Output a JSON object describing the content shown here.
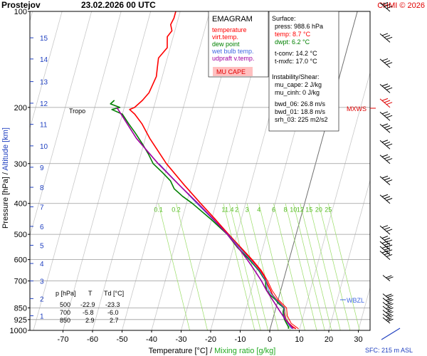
{
  "header": {
    "station": "Prostejov",
    "datetime": "23.02.2026 00 UTC",
    "copyright": "CHMI © 2026"
  },
  "legend": {
    "title": "EMAGRAM",
    "items": [
      {
        "label": "temperature",
        "color": "#ff0000"
      },
      {
        "label": "virt.temp.",
        "color": "#ff0000"
      },
      {
        "label": "dew point",
        "color": "#008000"
      },
      {
        "label": "wet bulb temp.",
        "color": "#4169e1"
      },
      {
        "label": "udpraft v.temp.",
        "color": "#a000a0"
      }
    ],
    "cape_label": "MU CAPE"
  },
  "surface": {
    "heading": "Surface:",
    "press": "press: 988.6 hPa",
    "temp": "temp: 8.7 °C",
    "dwpt": "dwpt: 6.2 °C",
    "tconv": "t-conv: 14.2 °C",
    "tmxfc": "t-mxfc: 17.0 °C"
  },
  "instability": {
    "heading": "Instability/Shear:",
    "mu_cape": "mu_cape: 2 J/kg",
    "mu_cinh": "mu_cinh: 0 J/kg",
    "bwd_06": "bwd_06: 26.8 m/s",
    "bwd_01": "bwd_01: 18.8 m/s",
    "srh_03": "srh_03: 225 m2/s2"
  },
  "markers": {
    "tropo": "Tropo",
    "mxws": "MXWS",
    "wbzl": "WBZL",
    "sfc": "SFC: 215 m ASL"
  },
  "table": {
    "headers": [
      "p [hPa]",
      "T",
      "Td [°C]"
    ],
    "rows": [
      [
        "500",
        "-22.9",
        "-23.3"
      ],
      [
        "700",
        "-5.8",
        "-6.0"
      ],
      [
        "850",
        "2.9",
        "2.7"
      ]
    ]
  },
  "axes": {
    "xlabel_prefix": "Temperature [°C]",
    "xlabel_sep": "/",
    "xlabel_suffix": "Mixing ratio [g/kg]",
    "ylabel_prefix": "Pressure [hPa]",
    "ylabel_sep": "/",
    "ylabel_suffix": "Altitude [km]"
  },
  "chart_data": {
    "type": "line",
    "xlim": [
      -80,
      30
    ],
    "ylim": [
      1000,
      100
    ],
    "y_scale": "log",
    "x_ticks": [
      -70,
      -60,
      -50,
      -40,
      -30,
      -20,
      -10,
      0,
      10,
      20,
      30
    ],
    "pressure_ticks": [
      100,
      200,
      300,
      400,
      500,
      600,
      700,
      850,
      925,
      1000
    ],
    "altitude_km_ticks": [
      1,
      2,
      3,
      4,
      5,
      6,
      7,
      8,
      9,
      10,
      11,
      12,
      13,
      14,
      15
    ],
    "altitude_km_pressure": [
      900,
      795,
      700,
      617,
      541,
      472,
      410,
      356,
      308,
      264,
      226,
      194,
      166,
      141,
      121
    ],
    "mixing_ratio_labels": [
      "0.1",
      "0.2",
      "1",
      "1.4",
      "2",
      "3",
      "4",
      "6",
      "8",
      "10",
      "12",
      "15",
      "20",
      "25"
    ],
    "mixing_ratio_label_temp_400": [
      -49.5,
      -43.5,
      -27.5,
      -25.5,
      -23,
      -19.5,
      -15.5,
      -10.5,
      -6.5,
      -3.8,
      -1.5,
      1.5,
      4.8,
      8
    ],
    "grid": true,
    "series": [
      {
        "name": "temperature",
        "color": "#ff0000",
        "points": [
          [
            988.6,
            8.7
          ],
          [
            975,
            7.5
          ],
          [
            950,
            5.8
          ],
          [
            925,
            4.5
          ],
          [
            900,
            3.8
          ],
          [
            875,
            3.2
          ],
          [
            850,
            2.9
          ],
          [
            825,
            1.2
          ],
          [
            800,
            -0.6
          ],
          [
            775,
            -2.3
          ],
          [
            750,
            -3.4
          ],
          [
            725,
            -4.6
          ],
          [
            700,
            -5.8
          ],
          [
            675,
            -7.0
          ],
          [
            650,
            -8.7
          ],
          [
            625,
            -10.6
          ],
          [
            600,
            -12.8
          ],
          [
            550,
            -17.6
          ],
          [
            500,
            -22.9
          ],
          [
            450,
            -28.6
          ],
          [
            400,
            -35.2
          ],
          [
            350,
            -42.5
          ],
          [
            300,
            -50.5
          ],
          [
            250,
            -58.5
          ],
          [
            225,
            -62.5
          ],
          [
            210,
            -65.8
          ],
          [
            203,
            -68.0
          ],
          [
            200,
            -66.5
          ],
          [
            190,
            -64.5
          ],
          [
            180,
            -63.0
          ],
          [
            170,
            -62.5
          ],
          [
            160,
            -62.0
          ],
          [
            150,
            -62.5
          ],
          [
            140,
            -63.0
          ],
          [
            130,
            -61.0
          ],
          [
            125,
            -61.5
          ],
          [
            120,
            -62.0
          ],
          [
            115,
            -61.0
          ],
          [
            110,
            -62.0
          ],
          [
            105,
            -61.5
          ],
          [
            100,
            -61.5
          ]
        ]
      },
      {
        "name": "virt.temp.",
        "color": "#ff0000",
        "points": [
          [
            988.6,
            9.6
          ],
          [
            950,
            6.6
          ],
          [
            900,
            4.6
          ],
          [
            850,
            3.6
          ],
          [
            800,
            0.0
          ],
          [
            750,
            -2.9
          ],
          [
            700,
            -5.3
          ],
          [
            650,
            -8.3
          ],
          [
            600,
            -12.5
          ],
          [
            500,
            -22.8
          ],
          [
            400,
            -35.2
          ]
        ]
      },
      {
        "name": "dew point",
        "color": "#008000",
        "points": [
          [
            988.6,
            6.2
          ],
          [
            975,
            6.0
          ],
          [
            950,
            5.0
          ],
          [
            925,
            4.0
          ],
          [
            900,
            3.3
          ],
          [
            875,
            2.8
          ],
          [
            850,
            2.7
          ],
          [
            825,
            0.6
          ],
          [
            800,
            -1.0
          ],
          [
            775,
            -3.1
          ],
          [
            750,
            -4.7
          ],
          [
            725,
            -5.5
          ],
          [
            700,
            -6.0
          ],
          [
            675,
            -7.6
          ],
          [
            650,
            -9.2
          ],
          [
            625,
            -11.3
          ],
          [
            600,
            -13.5
          ],
          [
            550,
            -18.6
          ],
          [
            500,
            -23.3
          ],
          [
            450,
            -30.0
          ],
          [
            400,
            -38.0
          ],
          [
            380,
            -42.0
          ],
          [
            360,
            -45.5
          ],
          [
            340,
            -47.5
          ],
          [
            320,
            -51.0
          ],
          [
            300,
            -55.0
          ],
          [
            280,
            -57.5
          ],
          [
            260,
            -60.5
          ],
          [
            240,
            -64.0
          ],
          [
            225,
            -67.0
          ],
          [
            210,
            -70.0
          ],
          [
            203,
            -74.0
          ],
          [
            200,
            -71.5
          ],
          [
            195,
            -75.0
          ],
          [
            190,
            -74.0
          ]
        ]
      },
      {
        "name": "wet bulb temp.",
        "color": "#4169e1",
        "points": [
          [
            988.6,
            7.3
          ],
          [
            950,
            5.4
          ],
          [
            900,
            3.5
          ],
          [
            850,
            2.8
          ],
          [
            800,
            -0.8
          ],
          [
            750,
            -4.1
          ],
          [
            700,
            -5.9
          ],
          [
            650,
            -9.0
          ],
          [
            600,
            -13.2
          ],
          [
            500,
            -23.1
          ],
          [
            400,
            -36.5
          ],
          [
            300,
            -53.0
          ]
        ]
      },
      {
        "name": "udpraft v.temp.",
        "color": "#a000a0",
        "points": [
          [
            988.6,
            7.8
          ],
          [
            925,
            4.3
          ],
          [
            850,
            0.6
          ],
          [
            800,
            -2.0
          ],
          [
            750,
            -4.8
          ],
          [
            700,
            -7.4
          ],
          [
            650,
            -10.6
          ],
          [
            600,
            -14.2
          ],
          [
            550,
            -18.4
          ],
          [
            500,
            -23.3
          ],
          [
            450,
            -29.2
          ],
          [
            400,
            -36.1
          ],
          [
            350,
            -44.2
          ],
          [
            300,
            -53.3
          ],
          [
            250,
            -63.0
          ],
          [
            200,
            -72.5
          ]
        ]
      }
    ],
    "wind_levels": [
      950,
      925,
      900,
      875,
      850,
      825,
      800,
      700,
      600,
      580,
      560,
      540,
      500,
      400,
      350,
      300,
      270,
      240,
      220,
      200,
      180,
      150,
      125,
      100
    ]
  }
}
